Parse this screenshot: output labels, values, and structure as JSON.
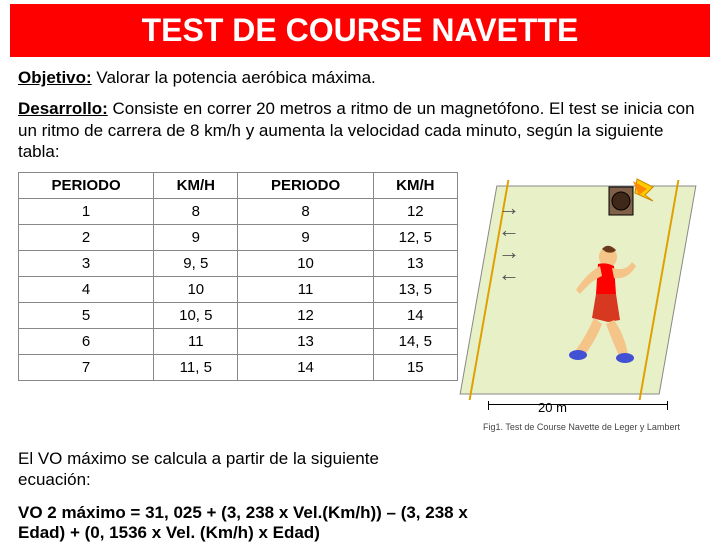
{
  "title": "TEST DE COURSE NAVETTE",
  "objetivo": {
    "label": "Objetivo:",
    "text": " Valorar la potencia aeróbica máxima."
  },
  "desarrollo": {
    "label": "Desarrollo:",
    "text": " Consiste en correr 20 metros a ritmo de un magnetófono. El test se inicia con un ritmo de carrera de 8 km/h y aumenta la velocidad cada minuto, según la siguiente tabla:"
  },
  "table": {
    "columns": [
      "PERIODO",
      "KM/H",
      "PERIODO",
      "KM/H"
    ],
    "rows": [
      [
        "1",
        "8",
        "8",
        "12"
      ],
      [
        "2",
        "9",
        "9",
        "12, 5"
      ],
      [
        "3",
        "9, 5",
        "10",
        "13"
      ],
      [
        "4",
        "10",
        "11",
        "13, 5"
      ],
      [
        "5",
        "10, 5",
        "12",
        "14"
      ],
      [
        "6",
        "11",
        "13",
        "14, 5"
      ],
      [
        "7",
        "11, 5",
        "14",
        "15"
      ]
    ],
    "border_color": "#888888",
    "font_size": 15
  },
  "footer": "El VO máximo se calcula a partir de la siguiente ecuación:",
  "formula": "VO 2 máximo = 31, 025 + (3, 238 x Vel.(Km/h)) – (3, 238 x Edad) + (0, 1536 x Vel. (Km/h) x Edad)",
  "illustration": {
    "dim_label": "20 m",
    "caption": "Fig1. Test de Course Navette de Leger y Lambert",
    "field_color": "#e8f0c8",
    "line_color": "#e0a000",
    "runner_colors": {
      "singlet": "#ff0000",
      "shorts": "#d63820",
      "skin": "#f4c488",
      "hair": "#6a3a1a",
      "shoes": "#4251d4"
    },
    "speaker_colors": {
      "body": "#806048",
      "flash": "#ffcc00"
    }
  },
  "colors": {
    "title_bg": "#ff0000",
    "title_fg": "#ffffff",
    "text": "#000000"
  }
}
